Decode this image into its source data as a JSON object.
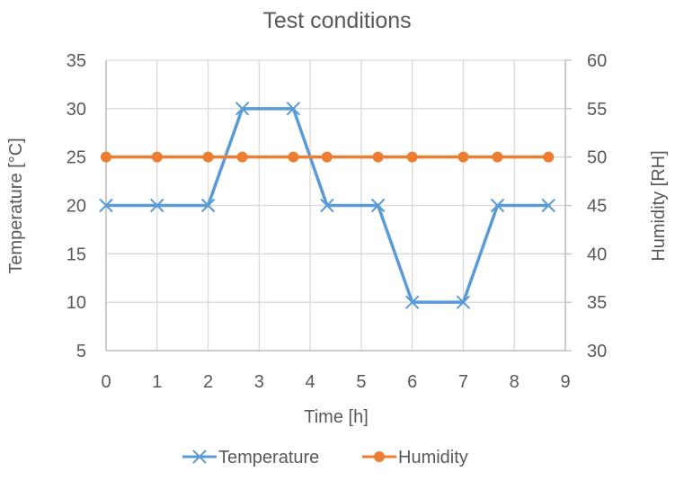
{
  "chart_data": {
    "type": "line",
    "title": "Test conditions",
    "xlabel": "Time  [h]",
    "ylabel": "Temperature [°C]",
    "ylabel_right": "Humidity [RH]",
    "xlim": [
      0,
      9
    ],
    "ylim": [
      5,
      35
    ],
    "ylim_right": [
      30,
      60
    ],
    "x_ticks": [
      "0",
      "1",
      "2",
      "3",
      "4",
      "5",
      "6",
      "7",
      "8",
      "9"
    ],
    "y_ticks": [
      "5",
      "10",
      "15",
      "20",
      "25",
      "30",
      "35"
    ],
    "y_ticks_right": [
      "30",
      "35",
      "40",
      "45",
      "50",
      "55",
      "60"
    ],
    "grid": true,
    "legend_position": "bottom",
    "series": [
      {
        "name": "Temperature",
        "axis": "left",
        "color": "#5B9BD5",
        "marker": "x",
        "x": [
          0,
          1,
          2,
          2.67,
          3.67,
          4.33,
          5.33,
          6,
          7,
          7.67,
          8.67
        ],
        "values": [
          20,
          20,
          20,
          30,
          30,
          20,
          20,
          10,
          10,
          20,
          20
        ]
      },
      {
        "name": "Humidity",
        "axis": "right",
        "color": "#ED7D31",
        "marker": "circle",
        "x": [
          0,
          1,
          2,
          2.67,
          3.67,
          4.33,
          5.33,
          6,
          7,
          7.67,
          8.67
        ],
        "values": [
          50,
          50,
          50,
          50,
          50,
          50,
          50,
          50,
          50,
          50,
          50
        ]
      }
    ]
  }
}
